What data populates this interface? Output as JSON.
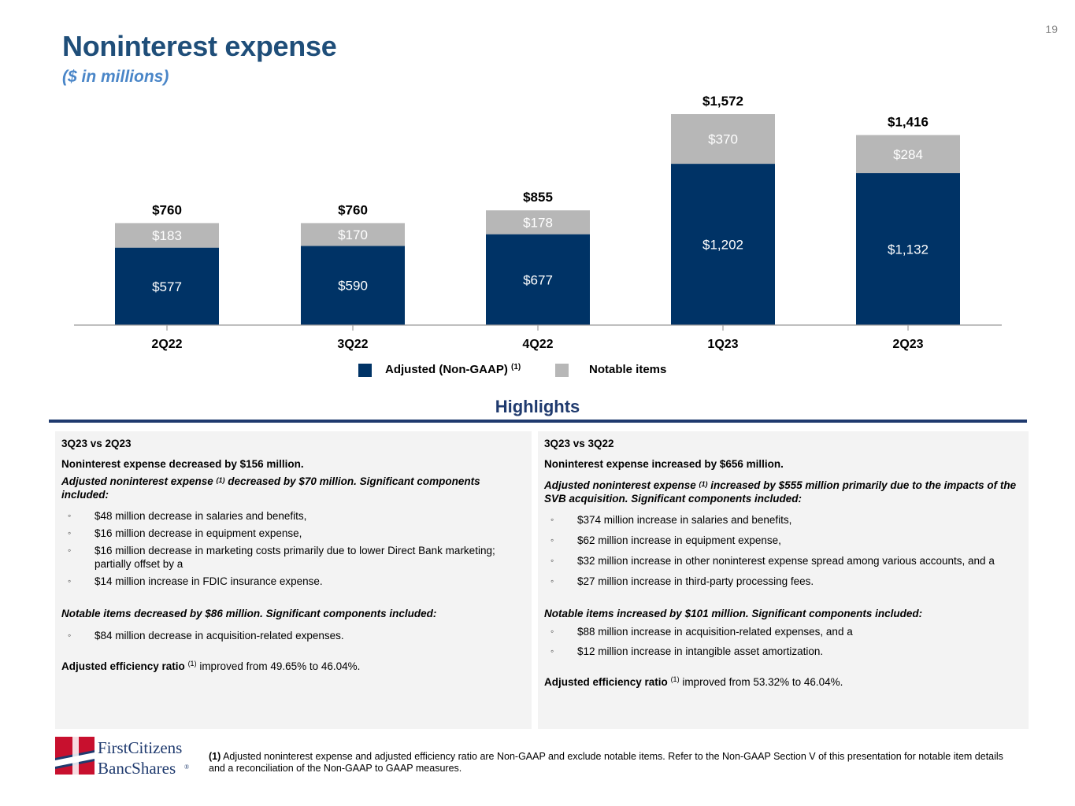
{
  "page": {
    "number": "19",
    "title": "Noninterest expense",
    "subtitle": "($ in millions)"
  },
  "colors": {
    "adjusted": "#003366",
    "notable": "#b7b7b7",
    "title": "#1f4e79",
    "subtitle": "#4a86c8",
    "highlights": "#1f3a6e",
    "panel_bg": "#f3f3f3"
  },
  "chart_data": {
    "type": "bar",
    "stacked": true,
    "title": "Noninterest expense",
    "subtitle": "($ in millions)",
    "categories": [
      "2Q22",
      "3Q22",
      "4Q22",
      "1Q23",
      "2Q23"
    ],
    "series": [
      {
        "name": "Adjusted (Non-GAAP)",
        "superscript": "(1)",
        "color": "#003366",
        "values": [
          577,
          590,
          677,
          1202,
          1132
        ],
        "labels": [
          "$577",
          "$590",
          "$677",
          "$1,202",
          "$1,132"
        ]
      },
      {
        "name": "Notable items",
        "superscript": "",
        "color": "#b7b7b7",
        "values": [
          183,
          170,
          178,
          370,
          284
        ],
        "labels": [
          "$183",
          "$170",
          "$178",
          "$370",
          "$284"
        ]
      }
    ],
    "totals": [
      760,
      760,
      855,
      1572,
      1416
    ],
    "total_labels": [
      "$760",
      "$760",
      "$855",
      "$1,572",
      "$1,416"
    ],
    "xlabel": "",
    "ylabel": "",
    "ylim": [
      0,
      1572
    ],
    "legend_position": "bottom-center"
  },
  "highlights": {
    "title": "Highlights",
    "left": {
      "period": "3Q23 vs 2Q23",
      "headline": "Noninterest expense decreased by $156 million.",
      "adjusted_pre": "Adjusted noninterest expense ",
      "adjusted_sup": "(1)",
      "adjusted_post": " decreased by $70 million. Significant components included:",
      "adjusted_items": [
        "$48 million decrease in salaries and benefits,",
        "$16 million decrease in equipment expense,",
        "$16 million decrease in marketing costs primarily due to lower Direct Bank marketing; partially offset by a",
        "$14 million increase in FDIC insurance expense."
      ],
      "notable_heading": "Notable items decreased by $86 million. Significant components included:",
      "notable_items": [
        "$84 million decrease in acquisition-related expenses."
      ],
      "efficiency_label": "Adjusted efficiency ratio",
      "efficiency_sup": "(1)",
      "efficiency_text": " improved from 49.65% to 46.04%."
    },
    "right": {
      "period": "3Q23 vs 3Q22",
      "headline": "Noninterest expense increased by $656 million.",
      "adjusted_pre": "Adjusted noninterest expense ",
      "adjusted_sup": "(1)",
      "adjusted_post": " increased by $555 million primarily due to the impacts of the SVB acquisition. Significant components included:",
      "adjusted_items": [
        "$374 million increase in salaries and benefits,",
        "$62 million increase in equipment expense,",
        "$32 million increase in other noninterest expense spread among various accounts, and a",
        "$27 million increase in third-party processing fees."
      ],
      "notable_heading": "Notable items increased by $101 million. Significant components included:",
      "notable_items": [
        "$88 million increase in acquisition-related expenses, and a",
        "$12 million increase in intangible asset amortization."
      ],
      "efficiency_label": "Adjusted efficiency ratio",
      "efficiency_sup": "(1)",
      "efficiency_text": " improved from 53.32% to 46.04%."
    }
  },
  "footer": {
    "logo_line1": "FirstCitizens",
    "logo_line2": "BancShares",
    "logo_mark": "®",
    "footnote_marker": "(1)",
    "footnote_text": " Adjusted noninterest expense and adjusted efficiency ratio are Non-GAAP and exclude notable items. Refer to the Non-GAAP Section V of this presentation for notable item details and a reconciliation of the Non-GAAP to GAAP measures."
  }
}
